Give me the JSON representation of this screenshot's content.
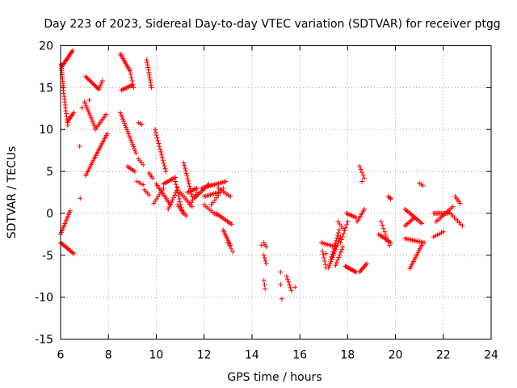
{
  "chart_data": {
    "type": "scatter",
    "title": "Day 223 of 2023, Sidereal Day-to-day VTEC variation (SDTVAR) for receiver ptgg",
    "xlabel": "GPS time / hours",
    "ylabel": "SDTVAR / TECUs",
    "xlim": [
      6,
      24
    ],
    "ylim": [
      -15,
      20
    ],
    "xticks": [
      6,
      8,
      10,
      12,
      14,
      16,
      18,
      20,
      22,
      24
    ],
    "yticks": [
      -15,
      -10,
      -5,
      0,
      5,
      10,
      15,
      20
    ],
    "xtick_labels": [
      "6",
      "8",
      "10",
      "12",
      "14",
      "16",
      "18",
      "20",
      "22",
      "24"
    ],
    "ytick_labels": [
      "-15",
      "-10",
      "-5",
      "0",
      "5",
      "10",
      "15",
      "20"
    ],
    "grid": true,
    "marker": "+",
    "marker_color": "#ff0000",
    "segments": [
      {
        "x0": 6.02,
        "y0": 17.8,
        "x1": 6.12,
        "y1": 15.0,
        "n": 12
      },
      {
        "x0": 6.1,
        "y0": 15.0,
        "x1": 6.3,
        "y1": 10.5,
        "n": 14
      },
      {
        "x0": 6.3,
        "y0": 11.0,
        "x1": 6.55,
        "y1": 12.0,
        "n": 8
      },
      {
        "x0": 6.05,
        "y0": 17.5,
        "x1": 6.5,
        "y1": 19.4,
        "n": 16
      },
      {
        "x0": 6.0,
        "y0": -2.5,
        "x1": 6.4,
        "y1": 0.3,
        "n": 14
      },
      {
        "x0": 6.0,
        "y0": -3.5,
        "x1": 6.55,
        "y1": -4.8,
        "n": 14
      },
      {
        "x0": 7.05,
        "y0": 16.3,
        "x1": 7.6,
        "y1": 14.8,
        "n": 14
      },
      {
        "x0": 7.6,
        "y0": 14.8,
        "x1": 7.75,
        "y1": 15.8,
        "n": 5
      },
      {
        "x0": 7.0,
        "y0": 13.3,
        "x1": 7.45,
        "y1": 10.2,
        "n": 14
      },
      {
        "x0": 7.45,
        "y0": 10.0,
        "x1": 7.9,
        "y1": 11.8,
        "n": 10
      },
      {
        "x0": 7.05,
        "y0": 4.5,
        "x1": 7.4,
        "y1": 6.5,
        "n": 10
      },
      {
        "x0": 7.4,
        "y0": 6.5,
        "x1": 7.95,
        "y1": 9.5,
        "n": 16
      },
      {
        "x0": 8.5,
        "y0": 19.0,
        "x1": 8.9,
        "y1": 17.0,
        "n": 12
      },
      {
        "x0": 8.9,
        "y0": 17.0,
        "x1": 9.05,
        "y1": 15.0,
        "n": 6
      },
      {
        "x0": 8.55,
        "y0": 14.7,
        "x1": 9.0,
        "y1": 15.3,
        "n": 10
      },
      {
        "x0": 8.5,
        "y0": 12.0,
        "x1": 9.15,
        "y1": 7.2,
        "n": 20
      },
      {
        "x0": 8.8,
        "y0": 5.6,
        "x1": 9.1,
        "y1": 5.0,
        "n": 6
      },
      {
        "x0": 9.25,
        "y0": 10.8,
        "x1": 9.4,
        "y1": 10.6,
        "n": 3
      },
      {
        "x0": 9.6,
        "y0": 18.3,
        "x1": 9.8,
        "y1": 15.0,
        "n": 12
      },
      {
        "x0": 9.25,
        "y0": 6.5,
        "x1": 9.45,
        "y1": 5.8,
        "n": 4
      },
      {
        "x0": 9.2,
        "y0": 3.8,
        "x1": 9.45,
        "y1": 3.4,
        "n": 4
      },
      {
        "x0": 9.5,
        "y0": 2.8,
        "x1": 9.7,
        "y1": 2.2,
        "n": 4
      },
      {
        "x0": 9.7,
        "y0": 4.8,
        "x1": 9.85,
        "y1": 4.2,
        "n": 4
      },
      {
        "x0": 9.95,
        "y0": 10.0,
        "x1": 10.4,
        "y1": 5.0,
        "n": 16
      },
      {
        "x0": 10.0,
        "y0": 3.5,
        "x1": 10.6,
        "y1": 1.0,
        "n": 14
      },
      {
        "x0": 9.9,
        "y0": 1.2,
        "x1": 10.3,
        "y1": 3.0,
        "n": 8
      },
      {
        "x0": 10.3,
        "y0": 3.5,
        "x1": 10.8,
        "y1": 4.3,
        "n": 10
      },
      {
        "x0": 10.5,
        "y0": 0.5,
        "x1": 10.9,
        "y1": 3.0,
        "n": 10
      },
      {
        "x0": 10.8,
        "y0": 3.8,
        "x1": 11.1,
        "y1": 0.0,
        "n": 12
      },
      {
        "x0": 10.9,
        "y0": 1.0,
        "x1": 11.25,
        "y1": -0.3,
        "n": 8
      },
      {
        "x0": 11.0,
        "y0": 2.5,
        "x1": 11.5,
        "y1": 0.8,
        "n": 10
      },
      {
        "x0": 11.15,
        "y0": 6.0,
        "x1": 11.5,
        "y1": 2.0,
        "n": 14
      },
      {
        "x0": 11.3,
        "y0": 2.5,
        "x1": 11.7,
        "y1": 3.0,
        "n": 8
      },
      {
        "x0": 11.4,
        "y0": 1.0,
        "x1": 11.7,
        "y1": 2.5,
        "n": 6
      },
      {
        "x0": 11.6,
        "y0": 1.8,
        "x1": 12.2,
        "y1": 3.5,
        "n": 12
      },
      {
        "x0": 11.9,
        "y0": 3.0,
        "x1": 12.9,
        "y1": 3.8,
        "n": 18
      },
      {
        "x0": 12.0,
        "y0": 2.0,
        "x1": 12.6,
        "y1": 2.5,
        "n": 10
      },
      {
        "x0": 12.3,
        "y0": 1.0,
        "x1": 12.8,
        "y1": 3.0,
        "n": 8
      },
      {
        "x0": 12.6,
        "y0": 3.0,
        "x1": 13.1,
        "y1": 2.0,
        "n": 8
      },
      {
        "x0": 12.0,
        "y0": 1.0,
        "x1": 12.5,
        "y1": -0.2,
        "n": 8
      },
      {
        "x0": 12.5,
        "y0": 0.0,
        "x1": 13.15,
        "y1": -1.3,
        "n": 12
      },
      {
        "x0": 12.8,
        "y0": -2.0,
        "x1": 13.1,
        "y1": -3.8,
        "n": 10
      },
      {
        "x0": 13.0,
        "y0": -3.5,
        "x1": 13.2,
        "y1": -4.6,
        "n": 4
      },
      {
        "x0": 14.5,
        "y0": -3.5,
        "x1": 14.6,
        "y1": -4.0,
        "n": 3
      },
      {
        "x0": 14.5,
        "y0": -5.0,
        "x1": 14.6,
        "y1": -6.0,
        "n": 4
      },
      {
        "x0": 14.5,
        "y0": -8.0,
        "x1": 14.55,
        "y1": -9.0,
        "n": 3
      },
      {
        "x0": 15.45,
        "y0": -7.5,
        "x1": 15.65,
        "y1": -9.2,
        "n": 6
      },
      {
        "x0": 16.9,
        "y0": -3.5,
        "x1": 17.5,
        "y1": -4.0,
        "n": 10
      },
      {
        "x0": 16.95,
        "y0": -4.5,
        "x1": 17.1,
        "y1": -6.5,
        "n": 6
      },
      {
        "x0": 17.2,
        "y0": -6.5,
        "x1": 17.7,
        "y1": -2.8,
        "n": 16
      },
      {
        "x0": 17.3,
        "y0": -5.5,
        "x1": 17.65,
        "y1": -2.0,
        "n": 12
      },
      {
        "x0": 17.5,
        "y0": -6.2,
        "x1": 17.8,
        "y1": -4.0,
        "n": 8
      },
      {
        "x0": 17.6,
        "y0": -1.0,
        "x1": 17.8,
        "y1": -1.8,
        "n": 4
      },
      {
        "x0": 17.7,
        "y0": -3.5,
        "x1": 18.0,
        "y1": -1.0,
        "n": 8
      },
      {
        "x0": 17.9,
        "y0": -6.3,
        "x1": 18.35,
        "y1": -7.0,
        "n": 12
      },
      {
        "x0": 17.95,
        "y0": 0.0,
        "x1": 18.35,
        "y1": -0.5,
        "n": 8
      },
      {
        "x0": 18.4,
        "y0": -1.0,
        "x1": 18.7,
        "y1": 0.5,
        "n": 8
      },
      {
        "x0": 18.5,
        "y0": -7.0,
        "x1": 18.8,
        "y1": -6.0,
        "n": 8
      },
      {
        "x0": 18.5,
        "y0": 5.6,
        "x1": 18.7,
        "y1": 4.2,
        "n": 5
      },
      {
        "x0": 19.3,
        "y0": -2.5,
        "x1": 19.8,
        "y1": -3.5,
        "n": 10
      },
      {
        "x0": 19.4,
        "y0": -1.0,
        "x1": 19.75,
        "y1": -3.8,
        "n": 8
      },
      {
        "x0": 19.7,
        "y0": 2.0,
        "x1": 19.8,
        "y1": 1.8,
        "n": 3
      },
      {
        "x0": 20.4,
        "y0": 0.5,
        "x1": 21.1,
        "y1": -1.2,
        "n": 14
      },
      {
        "x0": 20.4,
        "y0": -1.5,
        "x1": 20.8,
        "y1": -0.5,
        "n": 8
      },
      {
        "x0": 20.4,
        "y0": -3.0,
        "x1": 21.2,
        "y1": -3.5,
        "n": 14
      },
      {
        "x0": 20.6,
        "y0": -6.6,
        "x1": 21.1,
        "y1": -3.8,
        "n": 14
      },
      {
        "x0": 21.0,
        "y0": 3.6,
        "x1": 21.15,
        "y1": 3.3,
        "n": 3
      },
      {
        "x0": 21.6,
        "y0": 0.0,
        "x1": 22.2,
        "y1": 0.0,
        "n": 12
      },
      {
        "x0": 21.6,
        "y0": -2.8,
        "x1": 22.0,
        "y1": -2.2,
        "n": 6
      },
      {
        "x0": 21.7,
        "y0": -1.0,
        "x1": 22.4,
        "y1": 0.8,
        "n": 12
      },
      {
        "x0": 22.2,
        "y0": 0.3,
        "x1": 22.8,
        "y1": -1.5,
        "n": 10
      },
      {
        "x0": 22.5,
        "y0": 2.0,
        "x1": 22.7,
        "y1": 1.2,
        "n": 5
      }
    ],
    "points": [
      [
        6.8,
        8.0
      ],
      [
        6.82,
        1.8
      ],
      [
        6.9,
        12.6
      ],
      [
        7.2,
        13.5
      ],
      [
        14.4,
        -3.8
      ],
      [
        15.2,
        -7.0
      ],
      [
        15.2,
        -8.5
      ],
      [
        15.25,
        -10.2
      ],
      [
        15.8,
        -8.8
      ],
      [
        17.1,
        -4.8
      ],
      [
        18.6,
        3.8
      ],
      [
        19.8,
        1.7
      ]
    ]
  }
}
